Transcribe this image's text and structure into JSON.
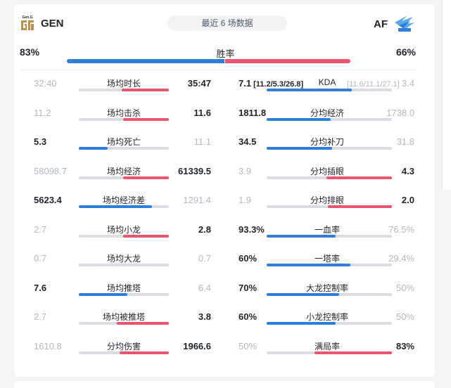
{
  "header": {
    "team_left": "GEN",
    "team_left_logo_text": "Gen.G",
    "team_right": "AF",
    "recent_label": "最近 6 场数据"
  },
  "win_rate": {
    "label": "胜率",
    "left": "83%",
    "right": "66%",
    "left_value": 83,
    "right_value": 66
  },
  "colors": {
    "blue": "#2e7fdc",
    "red": "#e8576f",
    "gray": "#d9dce1"
  },
  "stats_left": [
    {
      "label": "场均时长",
      "left": "32:40",
      "right": "35:47",
      "leader": "right",
      "left_share": 0.48
    },
    {
      "label": "场均击杀",
      "left": "11.2",
      "right": "11.6",
      "leader": "right",
      "left_share": 0.49
    },
    {
      "label": "场均死亡",
      "left": "5.3",
      "right": "11.1",
      "leader": "left",
      "left_share": 0.32
    },
    {
      "label": "场均经济",
      "left": "58098.7",
      "right": "61339.5",
      "leader": "right",
      "left_share": 0.49
    },
    {
      "label": "场均经济差",
      "left": "5623.4",
      "right": "1291.4",
      "leader": "left",
      "left_share": 0.81
    },
    {
      "label": "场均小龙",
      "left": "2.7",
      "right": "2.8",
      "leader": "right",
      "left_share": 0.49
    },
    {
      "label": "场均大龙",
      "left": "0.7",
      "right": "0.7",
      "leader": "none",
      "left_share": 0.5
    },
    {
      "label": "场均推塔",
      "left": "7.6",
      "right": "6.4",
      "leader": "left",
      "left_share": 0.54
    },
    {
      "label": "场均被推塔",
      "left": "2.7",
      "right": "3.8",
      "leader": "right",
      "left_share": 0.42
    },
    {
      "label": "分均伤害",
      "left": "1610.8",
      "right": "1966.6",
      "leader": "right",
      "left_share": 0.45
    }
  ],
  "stats_right": [
    {
      "label": "KDA",
      "left": "7.1",
      "left_extra": "[11.2/5.3/26.8]",
      "right": "3.4",
      "right_extra": "[11.6/11.1/27.1]",
      "leader": "left",
      "left_share": 0.68
    },
    {
      "label": "分均经济",
      "left": "1811.8",
      "right": "1738.0",
      "leader": "left",
      "left_share": 0.51
    },
    {
      "label": "分均补刀",
      "left": "34.5",
      "right": "31.8",
      "leader": "left",
      "left_share": 0.52
    },
    {
      "label": "分均插眼",
      "left": "3.9",
      "right": "4.3",
      "leader": "right",
      "left_share": 0.48
    },
    {
      "label": "分均排眼",
      "left": "1.9",
      "right": "2.0",
      "leader": "right",
      "left_share": 0.49
    },
    {
      "label": "一血率",
      "left": "93.3%",
      "right": "76.5%",
      "leader": "left",
      "left_share": 0.55
    },
    {
      "label": "一塔率",
      "left": "60%",
      "right": "29.4%",
      "leader": "left",
      "left_share": 0.67
    },
    {
      "label": "大龙控制率",
      "left": "70%",
      "right": "50%",
      "leader": "left",
      "left_share": 0.58
    },
    {
      "label": "小龙控制率",
      "left": "60%",
      "right": "50%",
      "leader": "left",
      "left_share": 0.55
    },
    {
      "label": "满局率",
      "left": "50%",
      "right": "83%",
      "leader": "right",
      "left_share": 0.38
    }
  ]
}
